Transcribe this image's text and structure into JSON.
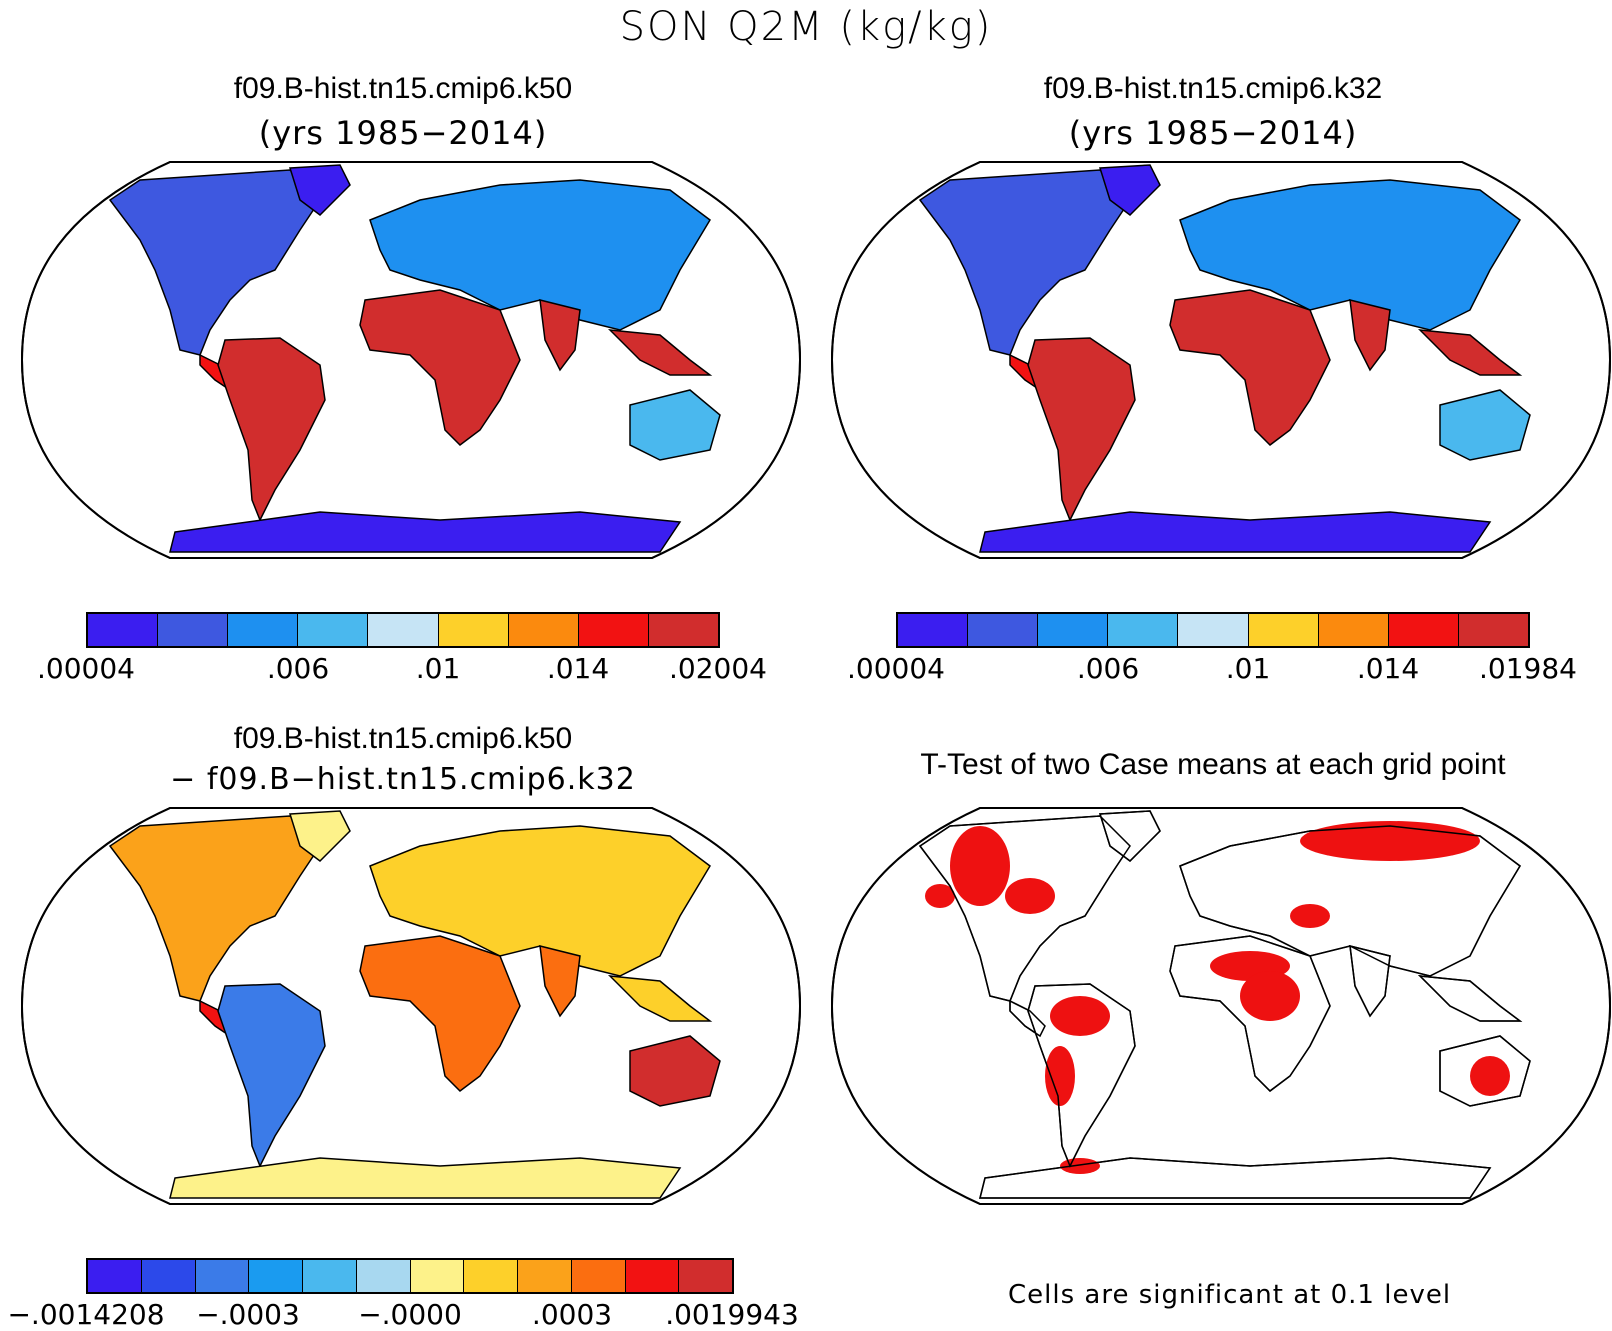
{
  "title": "SON Q2M (kg/kg)",
  "panels": [
    {
      "id": "k50",
      "case": "f09.B-hist.tn15.cmip6.k50",
      "years": "(yrs 1985−2014)"
    },
    {
      "id": "k32",
      "case": "f09.B-hist.tn15.cmip6.k32",
      "years": "(yrs 1985−2014)"
    },
    {
      "id": "diff",
      "case": "f09.B-hist.tn15.cmip6.k50",
      "minus": "− f09.B−hist.tn15.cmip6.k32"
    },
    {
      "id": "ttest",
      "title": "T-Test of two Case means at each grid point",
      "note": "Cells are significant at 0.1 level"
    }
  ],
  "colorbars": {
    "k50": {
      "colors": [
        "#3b1ef0",
        "#3e58e0",
        "#1e90f0",
        "#4ab8ee",
        "#c6e4f5",
        "#fdd02a",
        "#fb8a0e",
        "#f21212",
        "#d12d2d"
      ],
      "labels": [
        ".00004",
        ".006",
        ".01",
        ".014",
        ".02004"
      ]
    },
    "k32": {
      "colors": [
        "#3b1ef0",
        "#3e58e0",
        "#1e90f0",
        "#4ab8ee",
        "#c6e4f5",
        "#fdd02a",
        "#fb8a0e",
        "#f21212",
        "#d12d2d"
      ],
      "labels": [
        ".00004",
        ".006",
        ".01",
        ".014",
        ".01984"
      ]
    },
    "diff": {
      "colors": [
        "#3b1ef0",
        "#2c49ea",
        "#3b7be8",
        "#1a9bf0",
        "#4ab8ee",
        "#a8d8f0",
        "#fdf28a",
        "#fdd02a",
        "#fba21a",
        "#fb6e10",
        "#f21212",
        "#d12d2d"
      ],
      "labels": [
        "−.0014208",
        "−.0003",
        "−.0000",
        ".0003",
        ".0019943"
      ]
    }
  },
  "colors": {
    "significant": "#ee1111",
    "outline": "#000000"
  }
}
